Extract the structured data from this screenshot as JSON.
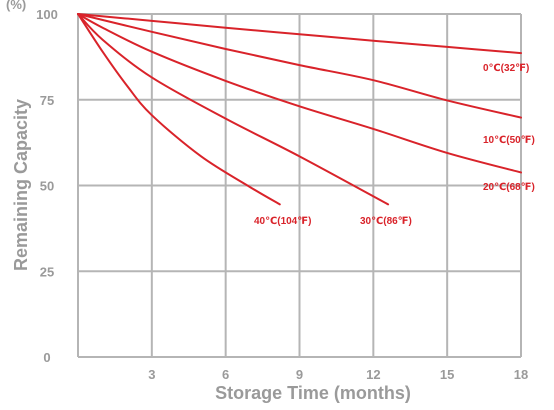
{
  "chart_data": {
    "type": "line",
    "title": "",
    "xlabel": "Storage Time (months)",
    "ylabel": "Remaining Capacity",
    "ylabel_unit": "(%)",
    "xlim": [
      0,
      18
    ],
    "ylim": [
      0,
      100
    ],
    "x_ticks": [
      3,
      6,
      9,
      12,
      15,
      18
    ],
    "y_ticks": [
      0,
      25,
      50,
      75,
      100
    ],
    "grid": true,
    "colors": {
      "series": "#d9232a",
      "grid": "#b5b5b5",
      "text": "#9a9a9a"
    },
    "series": [
      {
        "name": "0℃(32℉)",
        "x": [
          0,
          3,
          6,
          9,
          12,
          15,
          18
        ],
        "y": [
          100,
          98,
          96,
          94.1,
          92.2,
          90.4,
          88.6
        ]
      },
      {
        "name": "10℃(50℉)",
        "x": [
          0,
          3,
          6,
          9,
          12,
          15,
          18
        ],
        "y": [
          100,
          94.8,
          89.8,
          85.1,
          80.7,
          74.8,
          69.8
        ]
      },
      {
        "name": "20℃(68℉)",
        "x": [
          0,
          1,
          3,
          6,
          9,
          12,
          15,
          18
        ],
        "y": [
          100,
          96,
          89,
          80.5,
          73.1,
          66.5,
          59.5,
          53.8
        ]
      },
      {
        "name": "30℃(86℉)",
        "x": [
          0,
          1,
          3,
          6,
          9,
          12.6
        ],
        "y": [
          100,
          92.5,
          81.5,
          69.5,
          58.5,
          44.5
        ]
      },
      {
        "name": "40℃(104℉)",
        "x": [
          0,
          1,
          2,
          3,
          5,
          7,
          8.2
        ],
        "y": [
          100,
          89,
          79,
          70.5,
          58.5,
          49.5,
          44.5
        ]
      }
    ]
  }
}
